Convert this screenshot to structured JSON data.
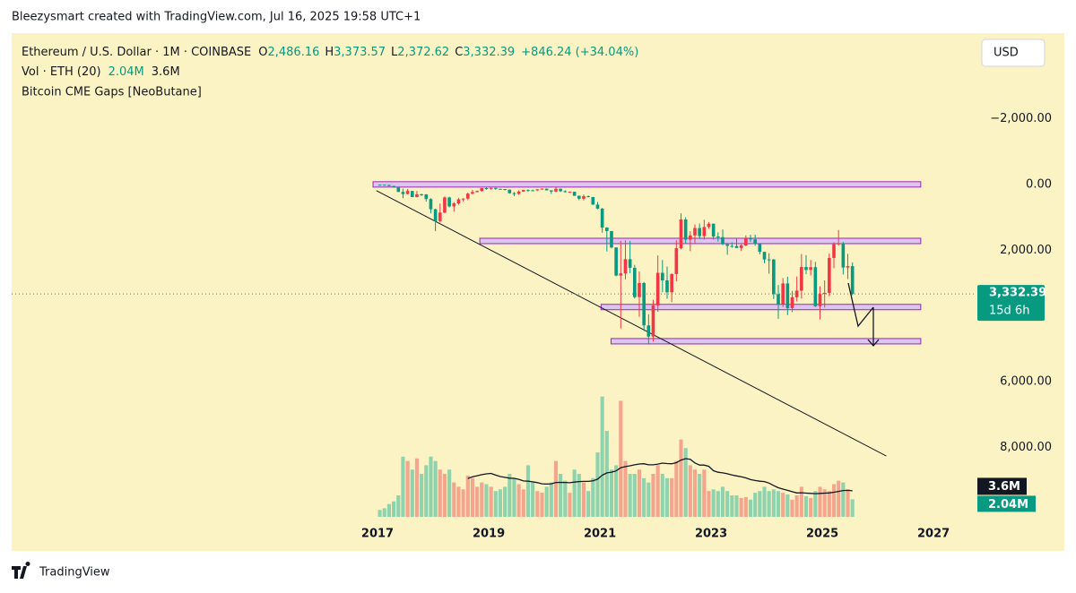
{
  "header": {
    "credit": "Bleezysmart created with TradingView.com, Jul 16, 2025 19:58 UTC+1",
    "currency": "USD",
    "brand": "TradingView"
  },
  "legend": {
    "symbol": "Ethereum / U.S. Dollar · 1M · COINBASE",
    "ohlc": [
      {
        "key": "O",
        "value": "2,486.16"
      },
      {
        "key": "H",
        "value": "3,373.57"
      },
      {
        "key": "L",
        "value": "2,372.62"
      },
      {
        "key": "C",
        "value": "3,332.39"
      }
    ],
    "change": "+846.24 (+34.04%)",
    "volume_title": "Vol · ETH (20)",
    "volume_value": "2.04M",
    "volume_ma": "3.6M",
    "indicator": "Bitcoin CME Gaps [NeoButane]"
  },
  "chart_data": {
    "type": "candlestick",
    "inverted": true,
    "up_color": "#089981",
    "down_color": "#f23645",
    "x": [
      "2017-01",
      "2017-02",
      "2017-03",
      "2017-04",
      "2017-05",
      "2017-06",
      "2017-07",
      "2017-08",
      "2017-09",
      "2017-10",
      "2017-11",
      "2017-12",
      "2018-01",
      "2018-02",
      "2018-03",
      "2018-04",
      "2018-05",
      "2018-06",
      "2018-07",
      "2018-08",
      "2018-09",
      "2018-10",
      "2018-11",
      "2018-12",
      "2019-01",
      "2019-02",
      "2019-03",
      "2019-04",
      "2019-05",
      "2019-06",
      "2019-07",
      "2019-08",
      "2019-09",
      "2019-10",
      "2019-11",
      "2019-12",
      "2020-01",
      "2020-02",
      "2020-03",
      "2020-04",
      "2020-05",
      "2020-06",
      "2020-07",
      "2020-08",
      "2020-09",
      "2020-10",
      "2020-11",
      "2020-12",
      "2021-01",
      "2021-02",
      "2021-03",
      "2021-04",
      "2021-05",
      "2021-06",
      "2021-07",
      "2021-08",
      "2021-09",
      "2021-10",
      "2021-11",
      "2021-12",
      "2022-01",
      "2022-02",
      "2022-03",
      "2022-04",
      "2022-05",
      "2022-06",
      "2022-07",
      "2022-08",
      "2022-09",
      "2022-10",
      "2022-11",
      "2022-12",
      "2023-01",
      "2023-02",
      "2023-03",
      "2023-04",
      "2023-05",
      "2023-06",
      "2023-07",
      "2023-08",
      "2023-09",
      "2023-10",
      "2023-11",
      "2023-12",
      "2024-01",
      "2024-02",
      "2024-03",
      "2024-04",
      "2024-05",
      "2024-06",
      "2024-07",
      "2024-08",
      "2024-09",
      "2024-10",
      "2024-11",
      "2024-12",
      "2025-01",
      "2025-02",
      "2025-03",
      "2025-04",
      "2025-05",
      "2025-06",
      "2025-07"
    ],
    "open": [
      8,
      10.7,
      15.6,
      50,
      80,
      230,
      293,
      200,
      385,
      302,
      305,
      446,
      756,
      1118,
      856,
      397,
      670,
      577,
      455,
      433,
      283,
      233,
      198,
      114,
      133,
      107,
      136,
      141,
      160,
      268,
      290,
      218,
      172,
      180,
      182,
      152,
      130,
      180,
      218,
      133,
      206,
      231,
      225,
      346,
      435,
      360,
      386,
      615,
      737,
      1313,
      1419,
      1918,
      2773,
      2707,
      2275,
      2536,
      3430,
      3000,
      4288,
      4630,
      3680,
      2689,
      2920,
      3282,
      2727,
      1942,
      1067,
      1680,
      1553,
      1328,
      1572,
      1295,
      1196,
      1585,
      1605,
      1822,
      1870,
      1874,
      1934,
      1857,
      1645,
      1671,
      1815,
      2051,
      2282,
      2283,
      3340,
      3647,
      3013,
      3762,
      3433,
      3232,
      2513,
      2602,
      2518,
      3705,
      3332,
      3300,
      2237,
      1822,
      1793,
      2528,
      2486.16
    ],
    "high": [
      11.6,
      16.5,
      55,
      98,
      232,
      420,
      300,
      390,
      395,
      350,
      525,
      880,
      1420,
      1160,
      880,
      700,
      830,
      620,
      520,
      480,
      300,
      240,
      220,
      160,
      160,
      165,
      145,
      185,
      285,
      360,
      320,
      230,
      225,
      200,
      197,
      157,
      185,
      290,
      239,
      229,
      248,
      253,
      350,
      480,
      488,
      395,
      622,
      755,
      1470,
      2040,
      1945,
      2795,
      4380,
      2890,
      2700,
      3470,
      4030,
      4460,
      4870,
      4780,
      3870,
      3280,
      3480,
      3580,
      2950,
      1975,
      1785,
      2030,
      1785,
      1660,
      1680,
      1350,
      1680,
      1740,
      1850,
      2140,
      1930,
      1930,
      2030,
      1880,
      1750,
      1865,
      2130,
      2400,
      2715,
      3490,
      4090,
      3730,
      3975,
      3885,
      3560,
      3475,
      2730,
      2770,
      3730,
      4110,
      3745,
      3400,
      2550,
      1860,
      2740,
      2880,
      3373.57
    ],
    "low": [
      7.9,
      10.5,
      15.5,
      40,
      78,
      130,
      140,
      195,
      200,
      280,
      295,
      420,
      740,
      580,
      365,
      375,
      540,
      410,
      420,
      251,
      168,
      190,
      104,
      82,
      102,
      104,
      129,
      140,
      155,
      230,
      180,
      165,
      155,
      159,
      142,
      116,
      128,
      200,
      86,
      125,
      180,
      214,
      220,
      340,
      310,
      335,
      380,
      535,
      715,
      1300,
      1440,
      1920,
      1720,
      1700,
      1720,
      2450,
      2650,
      2970,
      3950,
      3510,
      2160,
      2300,
      2500,
      2710,
      1700,
      880,
      1000,
      1422,
      1220,
      1190,
      1075,
      1150,
      1190,
      1460,
      1370,
      1780,
      1760,
      1625,
      1820,
      1550,
      1530,
      1530,
      1790,
      2050,
      2100,
      2270,
      3060,
      2850,
      2810,
      3240,
      2800,
      2120,
      2150,
      2300,
      2360,
      3100,
      2920,
      2100,
      1760,
      1385,
      1750,
      2110,
      2372.62
    ],
    "close": [
      10.7,
      15.6,
      50,
      80,
      230,
      293,
      200,
      385,
      302,
      305,
      446,
      756,
      1118,
      856,
      397,
      670,
      577,
      455,
      433,
      283,
      233,
      198,
      114,
      133,
      107,
      136,
      141,
      160,
      268,
      290,
      218,
      172,
      180,
      182,
      152,
      130,
      180,
      218,
      133,
      206,
      231,
      225,
      346,
      435,
      360,
      386,
      615,
      737,
      1313,
      1419,
      1918,
      2773,
      2707,
      2275,
      2536,
      3430,
      3000,
      4288,
      4630,
      3680,
      2689,
      2920,
      3282,
      2727,
      1942,
      1067,
      1680,
      1553,
      1328,
      1572,
      1295,
      1196,
      1585,
      1605,
      1822,
      1870,
      1874,
      1934,
      1857,
      1645,
      1671,
      1815,
      2051,
      2282,
      2283,
      3340,
      3647,
      3013,
      3762,
      3433,
      3232,
      2513,
      2602,
      2518,
      3705,
      3332,
      3300,
      2237,
      1822,
      1793,
      2528,
      2486.16,
      3332.39
    ],
    "volume": [
      0.8,
      1.0,
      1.5,
      1.8,
      2.5,
      7.0,
      6.5,
      5.5,
      6.8,
      5.0,
      6.0,
      7.0,
      6.5,
      5.5,
      5.0,
      5.5,
      4.0,
      3.5,
      3.2,
      4.8,
      4.5,
      3.5,
      4.0,
      3.8,
      3.5,
      3.0,
      3.2,
      3.5,
      5.0,
      4.5,
      3.8,
      3.2,
      6.0,
      4.0,
      3.0,
      2.8,
      3.5,
      4.0,
      6.5,
      5.0,
      4.2,
      2.8,
      5.5,
      5.0,
      4.0,
      3.0,
      4.5,
      7.5,
      14.0,
      10.0,
      5.5,
      6.0,
      13.5,
      6.5,
      5.0,
      5.0,
      5.5,
      4.5,
      4.0,
      5.0,
      6.0,
      5.0,
      4.5,
      4.5,
      6.5,
      9.0,
      8.0,
      6.0,
      5.5,
      5.0,
      5.5,
      3.0,
      3.2,
      3.0,
      3.5,
      3.0,
      2.5,
      2.5,
      2.2,
      2.3,
      2.0,
      2.8,
      3.0,
      3.5,
      3.0,
      3.2,
      3.0,
      2.8,
      2.6,
      2.0,
      2.5,
      3.5,
      2.4,
      2.2,
      3.0,
      3.5,
      3.2,
      3.0,
      3.8,
      4.2,
      4.0,
      3.2,
      2.04
    ],
    "volume_ma_length": 20,
    "vlim": [
      0,
      25
    ],
    "ylim": [
      -4600,
      10330
    ],
    "yticks": [
      {
        "value": -2000,
        "label": "−2,000.00"
      },
      {
        "value": 0,
        "label": "0.00"
      },
      {
        "value": 2000,
        "label": "2,000.00"
      },
      {
        "value": 6000,
        "label": "6,000.00"
      },
      {
        "value": 8000,
        "label": "8,000.00"
      }
    ],
    "xlim": [
      2010.42,
      2027.74
    ],
    "xticks": [
      2017,
      2019,
      2021,
      2023,
      2025,
      2027
    ],
    "zones": [
      {
        "value": 0,
        "start": 2016.92,
        "end": 2026.77
      },
      {
        "value": 1720,
        "start": 2018.84,
        "end": 2026.77
      },
      {
        "value": 3730,
        "start": 2021.02,
        "end": 2026.77
      },
      {
        "value": 4770,
        "start": 2021.2,
        "end": 2026.77
      }
    ],
    "trendline": {
      "x": [
        2016.98,
        2026.15
      ],
      "y": [
        190,
        8260
      ]
    },
    "price_label": {
      "value": 3332.39,
      "label": "3,332.39",
      "countdown": "15d 6h"
    },
    "volume_labels": {
      "ma": {
        "value": 3.6,
        "label": "3.6M"
      },
      "last": {
        "value": 2.04,
        "label": "2.04M"
      }
    }
  }
}
